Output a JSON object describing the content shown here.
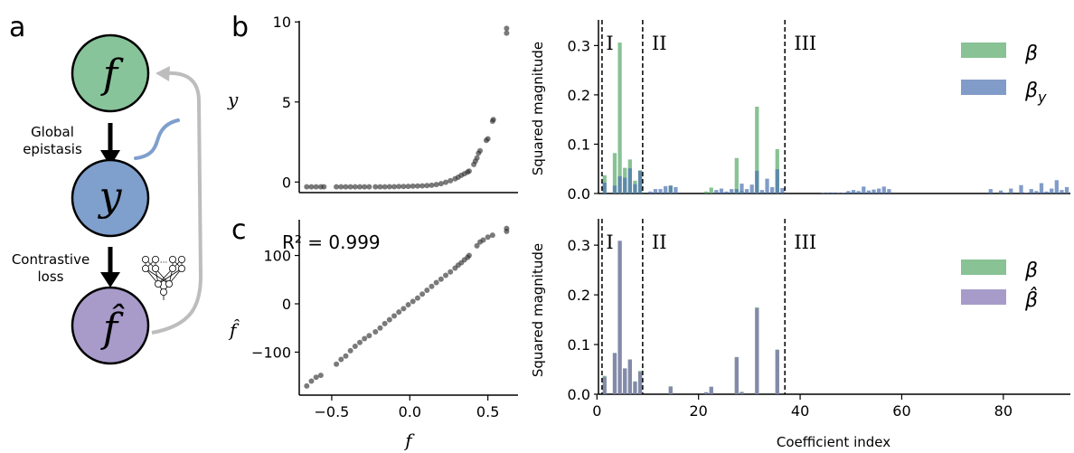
{
  "panel_labels": {
    "a": "a",
    "b": "b",
    "c": "c"
  },
  "diagram": {
    "nodes": [
      {
        "symbol": "f",
        "color": "#88c49a"
      },
      {
        "symbol": "y",
        "color": "#7f9fcc"
      },
      {
        "symbol": "f̂",
        "color": "#a89bc9"
      }
    ],
    "edge1_label": [
      "Global",
      "epistasis"
    ],
    "edge2_label": [
      "Contrastive",
      "loss"
    ],
    "icons": [
      "sigmoid-curve-icon",
      "neural-network-icon",
      "feedback-arrow-icon"
    ]
  },
  "chart_data": [
    {
      "id": "b-scatter",
      "type": "scatter",
      "xlabel": "",
      "ylabel": "y",
      "xlim": [
        -0.708,
        0.693
      ],
      "ylim": [
        -0.66,
        10.07
      ],
      "yticks": [
        0,
        5,
        10
      ],
      "ytick_labels": [
        "0",
        "5",
        "10"
      ],
      "xticks": [],
      "color": "#333333",
      "points": [
        [
          -0.66,
          -0.3
        ],
        [
          -0.63,
          -0.3
        ],
        [
          -0.6,
          -0.3
        ],
        [
          -0.57,
          -0.3
        ],
        [
          -0.55,
          -0.3
        ],
        [
          -0.47,
          -0.3
        ],
        [
          -0.44,
          -0.3
        ],
        [
          -0.41,
          -0.3
        ],
        [
          -0.38,
          -0.3
        ],
        [
          -0.35,
          -0.3
        ],
        [
          -0.32,
          -0.3
        ],
        [
          -0.29,
          -0.3
        ],
        [
          -0.26,
          -0.3
        ],
        [
          -0.22,
          -0.3
        ],
        [
          -0.19,
          -0.3
        ],
        [
          -0.16,
          -0.3
        ],
        [
          -0.13,
          -0.29
        ],
        [
          -0.1,
          -0.29
        ],
        [
          -0.07,
          -0.28
        ],
        [
          -0.04,
          -0.28
        ],
        [
          -0.01,
          -0.27
        ],
        [
          0.02,
          -0.26
        ],
        [
          0.05,
          -0.25
        ],
        [
          0.08,
          -0.24
        ],
        [
          0.11,
          -0.22
        ],
        [
          0.14,
          -0.2
        ],
        [
          0.17,
          -0.16
        ],
        [
          0.2,
          -0.1
        ],
        [
          0.23,
          -0.02
        ],
        [
          0.26,
          0.08
        ],
        [
          0.29,
          0.2
        ],
        [
          0.31,
          0.3
        ],
        [
          0.33,
          0.42
        ],
        [
          0.35,
          0.52
        ],
        [
          0.37,
          0.62
        ],
        [
          0.38,
          0.68
        ],
        [
          0.41,
          1.1
        ],
        [
          0.42,
          1.3
        ],
        [
          0.43,
          1.5
        ],
        [
          0.44,
          1.8
        ],
        [
          0.45,
          1.95
        ],
        [
          0.49,
          2.6
        ],
        [
          0.5,
          2.7
        ],
        [
          0.53,
          3.8
        ],
        [
          0.535,
          3.9
        ],
        [
          0.62,
          9.3
        ],
        [
          0.62,
          9.6
        ]
      ]
    },
    {
      "id": "c-scatter",
      "type": "scatter",
      "xlabel": "f",
      "ylabel": "f̂",
      "annotation": "R² = 0.999",
      "xlim": [
        -0.708,
        0.693
      ],
      "ylim": [
        -189,
        174
      ],
      "xticks": [
        -0.5,
        0.0,
        0.5
      ],
      "xtick_labels": [
        "−0.5",
        "0.0",
        "0.5"
      ],
      "yticks": [
        -100,
        0,
        100
      ],
      "ytick_labels": [
        "−100",
        "0",
        "100"
      ],
      "color": "#333333",
      "points": [
        [
          -0.66,
          -170
        ],
        [
          -0.63,
          -160
        ],
        [
          -0.6,
          -152
        ],
        [
          -0.57,
          -148
        ],
        [
          -0.47,
          -125
        ],
        [
          -0.44,
          -115
        ],
        [
          -0.41,
          -108
        ],
        [
          -0.38,
          -97
        ],
        [
          -0.35,
          -88
        ],
        [
          -0.32,
          -80
        ],
        [
          -0.29,
          -72
        ],
        [
          -0.26,
          -66
        ],
        [
          -0.22,
          -58
        ],
        [
          -0.19,
          -50
        ],
        [
          -0.16,
          -41
        ],
        [
          -0.13,
          -33
        ],
        [
          -0.1,
          -25
        ],
        [
          -0.07,
          -17
        ],
        [
          -0.04,
          -10
        ],
        [
          -0.01,
          -2
        ],
        [
          0.02,
          5
        ],
        [
          0.05,
          12
        ],
        [
          0.08,
          20
        ],
        [
          0.11,
          28
        ],
        [
          0.14,
          36
        ],
        [
          0.17,
          44
        ],
        [
          0.2,
          51
        ],
        [
          0.23,
          59
        ],
        [
          0.26,
          66
        ],
        [
          0.29,
          74
        ],
        [
          0.31,
          80
        ],
        [
          0.33,
          85
        ],
        [
          0.35,
          91
        ],
        [
          0.37,
          96
        ],
        [
          0.38,
          100
        ],
        [
          0.43,
          120
        ],
        [
          0.45,
          128
        ],
        [
          0.47,
          132
        ],
        [
          0.5,
          138
        ],
        [
          0.53,
          142
        ],
        [
          0.62,
          150
        ],
        [
          0.62,
          156
        ]
      ]
    },
    {
      "id": "b-bars",
      "type": "bar",
      "xlabel": "",
      "ylabel": "Squared magnitude",
      "xlim": [
        0.3,
        93.2
      ],
      "ylim": [
        0,
        0.352
      ],
      "yticks": [
        0,
        0.1,
        0.2,
        0.3
      ],
      "ytick_labels": [
        "0.0",
        "0.1",
        "0.2",
        "0.3"
      ],
      "xticks": [],
      "region_boundaries": [
        1,
        9,
        37
      ],
      "region_labels": [
        "I",
        "II",
        "III"
      ],
      "series": [
        {
          "name": "β",
          "color": "#55a868",
          "values": {
            "1": 0.037,
            "3": 0.082,
            "4": 0.306,
            "5": 0.052,
            "6": 0.069,
            "7": 0.026,
            "8": 0.047,
            "14": 0.016,
            "21": 0.004,
            "22": 0.012,
            "27": 0.072,
            "28": 0.005,
            "31": 0.176,
            "35": 0.09
          }
        },
        {
          "name": "βy",
          "color": "#4c72b0",
          "values": {
            "1": 0.022,
            "3": 0.016,
            "4": 0.035,
            "5": 0.032,
            "6": 0.051,
            "7": 0.019,
            "8": 0.046,
            "10": 0.004,
            "11": 0.009,
            "12": 0.009,
            "13": 0.015,
            "14": 0.016,
            "15": 0.013,
            "23": 0.007,
            "24": 0.01,
            "25": 0.004,
            "26": 0.009,
            "27": 0.009,
            "28": 0.02,
            "29": 0.009,
            "30": 0.018,
            "31": 0.046,
            "32": 0.007,
            "33": 0.03,
            "34": 0.013,
            "35": 0.049,
            "36": 0.011,
            "44": 0.001,
            "45": 0.002,
            "46": 0.002,
            "47": 0.001,
            "48": 0.001,
            "49": 0.005,
            "50": 0.007,
            "51": 0.005,
            "52": 0.014,
            "53": 0.006,
            "54": 0.008,
            "55": 0.01,
            "56": 0.014,
            "57": 0.009,
            "77": 0.009,
            "79": 0.006,
            "80": 0.001,
            "81": 0.01,
            "83": 0.017,
            "84": 0.001,
            "85": 0.009,
            "86": 0.005,
            "87": 0.021,
            "88": 0.004,
            "89": 0.01,
            "90": 0.027,
            "91": 0.007,
            "92": 0.013
          }
        }
      ],
      "legend": {
        "position": "top-right",
        "labels": [
          "β",
          "β",
          "y"
        ]
      }
    },
    {
      "id": "c-bars",
      "type": "bar",
      "xlabel": "Coefficient index",
      "ylabel": "Squared magnitude",
      "xlim": [
        0.3,
        93.2
      ],
      "ylim": [
        0,
        0.353
      ],
      "yticks": [
        0,
        0.1,
        0.2,
        0.3
      ],
      "ytick_labels": [
        "0.0",
        "0.1",
        "0.2",
        "0.3"
      ],
      "xticks": [
        0,
        20,
        40,
        60,
        80
      ],
      "xtick_labels": [
        "0",
        "20",
        "40",
        "60",
        "80"
      ],
      "region_boundaries": [
        1,
        9,
        37
      ],
      "region_labels": [
        "I",
        "II",
        "III"
      ],
      "series": [
        {
          "name": "β",
          "color": "#55a868",
          "values": {
            "1": 0.037,
            "3": 0.083,
            "4": 0.308,
            "5": 0.052,
            "6": 0.07,
            "7": 0.026,
            "8": 0.047,
            "14": 0.016,
            "21": 0.004,
            "22": 0.015,
            "27": 0.074,
            "28": 0.005,
            "31": 0.175,
            "35": 0.09
          }
        },
        {
          "name": "β̂",
          "color": "#8172b2",
          "values": {
            "1": 0.035,
            "3": 0.083,
            "4": 0.309,
            "5": 0.052,
            "6": 0.07,
            "7": 0.025,
            "8": 0.045,
            "14": 0.015,
            "21": 0.004,
            "22": 0.015,
            "27": 0.075,
            "28": 0.004,
            "31": 0.173,
            "35": 0.089
          }
        }
      ],
      "legend": {
        "position": "top-right",
        "labels": [
          "β",
          "β̂"
        ]
      }
    }
  ]
}
